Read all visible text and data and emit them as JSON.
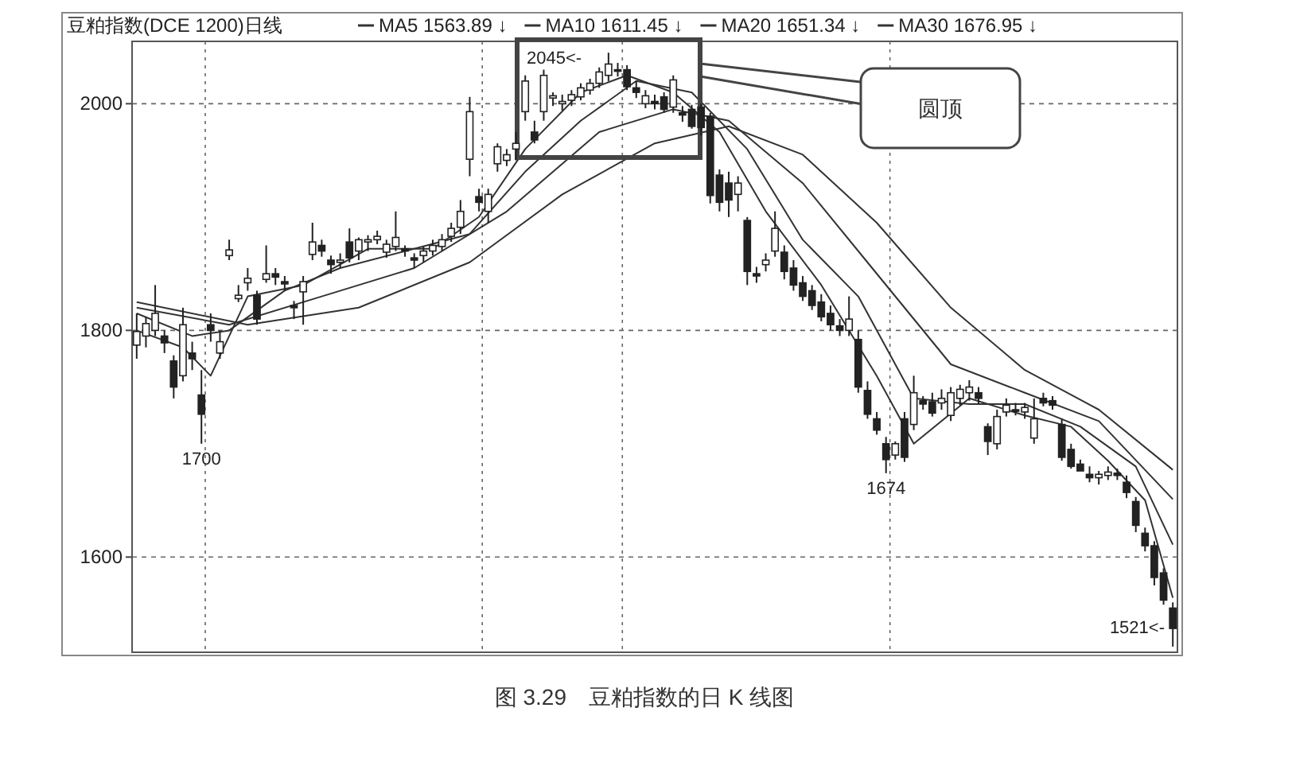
{
  "chart_data": {
    "type": "candlestick",
    "title": "豆粕指数(DCE 1200)日线",
    "categories": [
      null,
      null,
      null,
      null,
      null,
      null,
      null,
      null,
      null,
      null,
      null,
      null,
      null,
      null,
      null,
      null,
      null,
      null,
      null,
      null,
      null,
      null,
      null,
      null,
      null,
      null,
      null,
      null,
      null,
      null,
      null,
      null,
      null,
      null,
      null,
      null,
      null,
      null,
      null,
      null,
      null,
      null,
      null,
      null,
      null,
      null,
      null,
      null,
      null,
      null,
      null,
      null,
      null,
      null,
      null,
      null,
      null,
      null,
      null,
      null,
      null,
      null,
      null,
      null,
      null,
      null,
      null,
      null,
      null,
      null,
      null,
      null,
      null,
      null,
      null,
      null,
      null,
      null,
      null,
      null,
      null,
      null,
      null,
      null,
      null,
      null,
      null,
      null,
      null,
      null,
      null,
      null,
      null,
      null,
      null,
      null,
      null,
      null,
      null,
      null,
      null,
      null,
      null,
      null,
      null,
      null,
      null,
      null,
      null,
      null,
      null,
      null,
      null
    ],
    "ohlc": [
      [
        1787,
        1815,
        1775,
        1799
      ],
      [
        1795,
        1812,
        1785,
        1806
      ],
      [
        1800,
        1840,
        1795,
        1815
      ],
      [
        1795,
        1800,
        1780,
        1789
      ],
      [
        1773,
        1778,
        1740,
        1750
      ],
      [
        1760,
        1820,
        1755,
        1805
      ],
      [
        1780,
        1790,
        1765,
        1775
      ],
      [
        1743,
        1765,
        1700,
        1726
      ],
      [
        1805,
        1815,
        1790,
        1800
      ],
      [
        1780,
        1800,
        1775,
        1790
      ],
      [
        1866,
        1880,
        1862,
        1871
      ],
      [
        1828,
        1840,
        1825,
        1831
      ],
      [
        1842,
        1855,
        1835,
        1846
      ],
      [
        1831,
        1835,
        1805,
        1810
      ],
      [
        1845,
        1875,
        1842,
        1850
      ],
      [
        1850,
        1855,
        1840,
        1847
      ],
      [
        1843,
        1848,
        1835,
        1841
      ],
      [
        1822,
        1826,
        1810,
        1820
      ],
      [
        1834,
        1848,
        1805,
        1843
      ],
      [
        1867,
        1895,
        1862,
        1878
      ],
      [
        1875,
        1880,
        1865,
        1870
      ],
      [
        1862,
        1866,
        1850,
        1858
      ],
      [
        1860,
        1868,
        1855,
        1862
      ],
      [
        1878,
        1890,
        1860,
        1864
      ],
      [
        1870,
        1882,
        1862,
        1880
      ],
      [
        1878,
        1884,
        1870,
        1880
      ],
      [
        1880,
        1888,
        1876,
        1883
      ],
      [
        1869,
        1880,
        1864,
        1876
      ],
      [
        1874,
        1905,
        1870,
        1882
      ],
      [
        1872,
        1875,
        1865,
        1870
      ],
      [
        1864,
        1868,
        1855,
        1862
      ],
      [
        1866,
        1874,
        1860,
        1870
      ],
      [
        1870,
        1880,
        1866,
        1875
      ],
      [
        1874,
        1885,
        1870,
        1880
      ],
      [
        1883,
        1895,
        1878,
        1890
      ],
      [
        1891,
        1915,
        1885,
        1905
      ],
      [
        1951,
        2006,
        1936,
        1993
      ],
      [
        1918,
        1925,
        1905,
        1913
      ],
      [
        1905,
        1925,
        1895,
        1920
      ],
      [
        1947,
        1965,
        1940,
        1962
      ],
      [
        1950,
        1960,
        1945,
        1955
      ],
      [
        1960,
        1975,
        1950,
        1965
      ],
      [
        1993,
        2025,
        1985,
        2020
      ],
      [
        1975,
        1985,
        1965,
        1968
      ],
      [
        1993,
        2030,
        1985,
        2025
      ],
      [
        2005,
        2010,
        1998,
        2007
      ],
      [
        2000,
        2008,
        1994,
        2002
      ],
      [
        2003,
        2012,
        1998,
        2008
      ],
      [
        2006,
        2018,
        2003,
        2014
      ],
      [
        2012,
        2022,
        2008,
        2018
      ],
      [
        2018,
        2032,
        2014,
        2028
      ],
      [
        2025,
        2045,
        2020,
        2035
      ],
      [
        2030,
        2036,
        2024,
        2030
      ],
      [
        2030,
        2034,
        2012,
        2015
      ],
      [
        2014,
        2020,
        2005,
        2010
      ],
      [
        2000,
        2012,
        1996,
        2007
      ],
      [
        2002,
        2008,
        1995,
        2000
      ],
      [
        2006,
        2010,
        1992,
        1995
      ],
      [
        1997,
        2025,
        1992,
        2021
      ],
      [
        1992,
        1998,
        1984,
        1990
      ],
      [
        1995,
        1999,
        1978,
        1980
      ],
      [
        1997,
        2000,
        1972,
        1979
      ],
      [
        1989,
        1992,
        1912,
        1919
      ],
      [
        1937,
        1942,
        1905,
        1913
      ],
      [
        1930,
        1940,
        1900,
        1915
      ],
      [
        1920,
        1936,
        1905,
        1930
      ],
      [
        1897,
        1900,
        1840,
        1852
      ],
      [
        1850,
        1856,
        1842,
        1848
      ],
      [
        1858,
        1868,
        1852,
        1862
      ],
      [
        1870,
        1905,
        1865,
        1890
      ],
      [
        1869,
        1875,
        1845,
        1852
      ],
      [
        1855,
        1862,
        1835,
        1840
      ],
      [
        1842,
        1848,
        1826,
        1830
      ],
      [
        1835,
        1840,
        1818,
        1822
      ],
      [
        1825,
        1832,
        1808,
        1812
      ],
      [
        1815,
        1822,
        1800,
        1805
      ],
      [
        1804,
        1810,
        1795,
        1800
      ],
      [
        1800,
        1830,
        1795,
        1810
      ],
      [
        1792,
        1800,
        1745,
        1750
      ],
      [
        1747,
        1755,
        1722,
        1726
      ],
      [
        1722,
        1728,
        1708,
        1712
      ],
      [
        1700,
        1706,
        1674,
        1686
      ],
      [
        1690,
        1702,
        1686,
        1700
      ],
      [
        1722,
        1728,
        1684,
        1688
      ],
      [
        1717,
        1760,
        1712,
        1745
      ],
      [
        1738,
        1742,
        1730,
        1735
      ],
      [
        1737,
        1745,
        1724,
        1727
      ],
      [
        1736,
        1748,
        1730,
        1740
      ],
      [
        1725,
        1750,
        1720,
        1745
      ],
      [
        1740,
        1752,
        1734,
        1748
      ],
      [
        1745,
        1756,
        1738,
        1750
      ],
      [
        1745,
        1750,
        1735,
        1740
      ],
      [
        1715,
        1718,
        1690,
        1702
      ],
      [
        1700,
        1730,
        1695,
        1724
      ],
      [
        1728,
        1740,
        1724,
        1734
      ],
      [
        1730,
        1736,
        1725,
        1730
      ],
      [
        1728,
        1736,
        1722,
        1732
      ],
      [
        1705,
        1740,
        1700,
        1722
      ],
      [
        1740,
        1745,
        1733,
        1736
      ],
      [
        1738,
        1742,
        1730,
        1734
      ],
      [
        1717,
        1722,
        1685,
        1688
      ],
      [
        1695,
        1700,
        1678,
        1680
      ],
      [
        1682,
        1686,
        1676,
        1676
      ],
      [
        1673,
        1680,
        1666,
        1670
      ],
      [
        1670,
        1676,
        1664,
        1673
      ],
      [
        1672,
        1680,
        1668,
        1675
      ],
      [
        1674,
        1678,
        1668,
        1672
      ],
      [
        1666,
        1672,
        1652,
        1657
      ],
      [
        1649,
        1653,
        1622,
        1628
      ],
      [
        1621,
        1626,
        1605,
        1610
      ],
      [
        1610,
        1614,
        1575,
        1582
      ],
      [
        1586,
        1590,
        1558,
        1562
      ],
      [
        1555,
        1560,
        1521,
        1537
      ]
    ],
    "series": [
      {
        "name": "MA5 1563.89 ↓",
        "type": "line",
        "color": "#333333",
        "values": [
          1800,
          null,
          null,
          null,
          null,
          1785,
          null,
          null,
          1760,
          null,
          null,
          null,
          1830,
          null,
          null,
          null,
          null,
          null,
          1840,
          null,
          null,
          null,
          null,
          null,
          null,
          1872,
          null,
          null,
          null,
          null,
          null,
          null,
          1872,
          null,
          null,
          null,
          null,
          1900,
          null,
          null,
          null,
          null,
          1960,
          null,
          null,
          null,
          null,
          null,
          2010,
          null,
          null,
          null,
          null,
          2025,
          null,
          null,
          null,
          null,
          2010,
          null,
          null,
          null,
          null,
          1975,
          null,
          null,
          null,
          null,
          1905,
          null,
          null,
          null,
          null,
          null,
          1840,
          null,
          null,
          null,
          null,
          null,
          1760,
          null,
          null,
          null,
          1700,
          null,
          null,
          null,
          null,
          null,
          1740,
          null,
          null,
          null,
          null,
          null,
          1725,
          null,
          null,
          null,
          null,
          1715,
          null,
          null,
          null,
          1685,
          null,
          null,
          null,
          1650,
          null,
          null,
          1564
        ]
      },
      {
        "name": "MA10 1611.45 ↓",
        "type": "line",
        "color": "#333333",
        "values": [
          1815,
          null,
          null,
          null,
          null,
          null,
          1795,
          null,
          null,
          null,
          1800,
          null,
          null,
          null,
          null,
          null,
          1835,
          null,
          null,
          null,
          null,
          null,
          1855,
          null,
          null,
          null,
          null,
          null,
          null,
          null,
          1872,
          null,
          null,
          null,
          null,
          null,
          1885,
          null,
          null,
          null,
          null,
          null,
          1940,
          null,
          null,
          null,
          null,
          null,
          1985,
          null,
          null,
          null,
          null,
          null,
          2020,
          null,
          null,
          null,
          null,
          null,
          2010,
          null,
          null,
          null,
          null,
          null,
          1960,
          null,
          null,
          null,
          null,
          null,
          1880,
          null,
          null,
          null,
          null,
          null,
          1830,
          null,
          null,
          null,
          null,
          null,
          1740,
          null,
          null,
          null,
          null,
          null,
          1735,
          null,
          null,
          null,
          null,
          null,
          1735,
          null,
          null,
          null,
          null,
          null,
          1715,
          null,
          null,
          null,
          null,
          null,
          1680,
          null,
          null,
          null,
          1611
        ]
      },
      {
        "name": "MA20 1651.34 ↓",
        "type": "line",
        "color": "#333333",
        "values": [
          1820,
          null,
          null,
          null,
          null,
          null,
          null,
          null,
          null,
          null,
          1805,
          null,
          null,
          null,
          null,
          null,
          null,
          null,
          null,
          null,
          1830,
          null,
          null,
          null,
          null,
          null,
          null,
          null,
          null,
          null,
          1855,
          null,
          null,
          null,
          null,
          null,
          null,
          null,
          null,
          null,
          1905,
          null,
          null,
          null,
          null,
          null,
          null,
          null,
          null,
          null,
          1975,
          null,
          null,
          null,
          null,
          null,
          null,
          null,
          1995,
          null,
          null,
          null,
          null,
          null,
          1985,
          null,
          null,
          null,
          null,
          null,
          null,
          null,
          1930,
          null,
          null,
          null,
          null,
          null,
          null,
          null,
          1850,
          null,
          null,
          null,
          null,
          null,
          null,
          null,
          1770,
          null,
          null,
          null,
          null,
          null,
          null,
          null,
          1745,
          null,
          null,
          null,
          null,
          null,
          null,
          null,
          1720,
          null,
          null,
          null,
          null,
          null,
          null,
          null,
          1651
        ]
      },
      {
        "name": "MA30 1676.95 ↓",
        "type": "line",
        "color": "#333333",
        "values": [
          1825,
          null,
          null,
          null,
          null,
          null,
          null,
          null,
          null,
          null,
          null,
          null,
          1805,
          null,
          null,
          null,
          null,
          null,
          null,
          null,
          null,
          null,
          null,
          null,
          1820,
          null,
          null,
          null,
          null,
          null,
          null,
          null,
          null,
          null,
          null,
          null,
          1860,
          null,
          null,
          null,
          null,
          null,
          null,
          null,
          null,
          null,
          1920,
          null,
          null,
          null,
          null,
          null,
          null,
          null,
          null,
          null,
          1965,
          null,
          null,
          null,
          null,
          null,
          null,
          null,
          1980,
          null,
          null,
          null,
          null,
          null,
          null,
          null,
          1955,
          null,
          null,
          null,
          null,
          null,
          null,
          null,
          1895,
          null,
          null,
          null,
          null,
          null,
          null,
          null,
          1820,
          null,
          null,
          null,
          null,
          null,
          null,
          null,
          1765,
          null,
          null,
          null,
          null,
          null,
          null,
          null,
          1730,
          null,
          null,
          null,
          null,
          null,
          null,
          null,
          1677
        ]
      }
    ],
    "ylim": [
      1516,
      2055
    ],
    "yticks": [
      1600,
      1800,
      2000
    ],
    "grid": "y",
    "legend": "top",
    "annotations": [
      "圆顶",
      "2045<-",
      {
        "text": "1700",
        "y": 1700
      },
      {
        "text": "1674",
        "y": 1674
      },
      "1521<-",
      "图 3.29　豆粕指数的日 K 线图"
    ]
  }
}
